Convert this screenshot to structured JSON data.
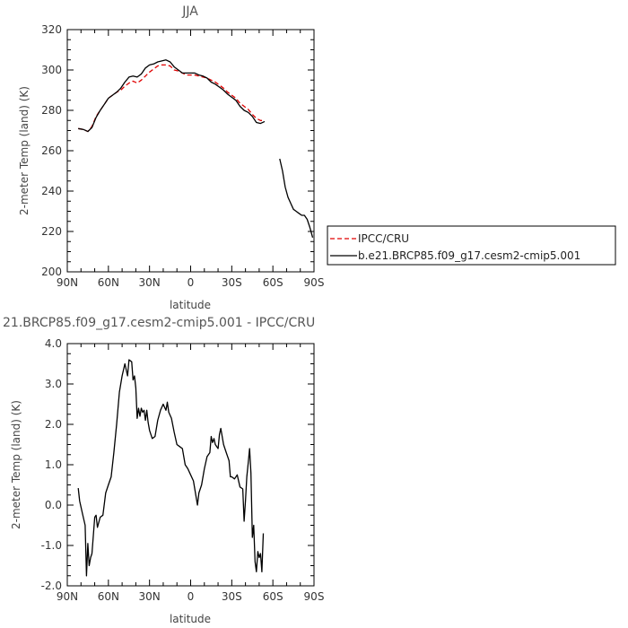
{
  "chart_data": [
    {
      "type": "line",
      "title": "JJA",
      "xlabel": "latitude",
      "ylabel": "2-meter Temp (land) (K)",
      "xlim": [
        90,
        -90
      ],
      "ylim": [
        200,
        320
      ],
      "x_ticks": [
        90,
        60,
        30,
        0,
        -30,
        -60,
        -90
      ],
      "x_tick_labels": [
        "90N",
        "60N",
        "30N",
        "0",
        "30S",
        "60S",
        "90S"
      ],
      "y_ticks": [
        200,
        220,
        240,
        260,
        280,
        300,
        320
      ],
      "y_tick_labels": [
        "200",
        "220",
        "240",
        "260",
        "280",
        "300",
        "320"
      ],
      "legend": "right",
      "series": [
        {
          "name": "IPCC/CRU",
          "color": "#e00000",
          "dash": "dashed",
          "points": [
            [
              82,
              271
            ],
            [
              78,
              270.5
            ],
            [
              75,
              269.5
            ],
            [
              72,
              272
            ],
            [
              69,
              277
            ],
            [
              66,
              280
            ],
            [
              63,
              283
            ],
            [
              60,
              286
            ],
            [
              57,
              287.5
            ],
            [
              54,
              289
            ],
            [
              51,
              290
            ],
            [
              48,
              292
            ],
            [
              45,
              293.5
            ],
            [
              42,
              294.5
            ],
            [
              39,
              293.5
            ],
            [
              36,
              295
            ],
            [
              33,
              297
            ],
            [
              30,
              299
            ],
            [
              27,
              300.5
            ],
            [
              24,
              302
            ],
            [
              21,
              302.5
            ],
            [
              18,
              302.5
            ],
            [
              15,
              302
            ],
            [
              12,
              300
            ],
            [
              9,
              299.5
            ],
            [
              6,
              298.5
            ],
            [
              3,
              297.5
            ],
            [
              0,
              297.5
            ],
            [
              -3,
              297.5
            ],
            [
              -6,
              297
            ],
            [
              -9,
              296.5
            ],
            [
              -12,
              296
            ],
            [
              -15,
              295
            ],
            [
              -18,
              294
            ],
            [
              -21,
              292.5
            ],
            [
              -24,
              291
            ],
            [
              -27,
              289
            ],
            [
              -30,
              287.5
            ],
            [
              -33,
              286
            ],
            [
              -36,
              283.5
            ],
            [
              -39,
              282
            ],
            [
              -42,
              280.5
            ],
            [
              -45,
              278
            ],
            [
              -48,
              276
            ],
            [
              -51,
              275
            ],
            [
              -54,
              275
            ]
          ]
        },
        {
          "name": "b.e21.BRCP85.f09_g17.cesm2-cmip5.001",
          "color": "#000000",
          "dash": "solid",
          "points": [
            [
              82,
              271
            ],
            [
              78,
              270.5
            ],
            [
              75,
              269.5
            ],
            [
              72,
              271.5
            ],
            [
              69,
              276.5
            ],
            [
              66,
              280
            ],
            [
              63,
              283
            ],
            [
              60,
              286
            ],
            [
              57,
              287.5
            ],
            [
              54,
              289
            ],
            [
              51,
              291
            ],
            [
              48,
              294
            ],
            [
              45,
              296.5
            ],
            [
              42,
              297
            ],
            [
              39,
              296.5
            ],
            [
              36,
              298
            ],
            [
              33,
              301
            ],
            [
              30,
              302.5
            ],
            [
              27,
              303
            ],
            [
              24,
              304
            ],
            [
              21,
              304.5
            ],
            [
              18,
              305
            ],
            [
              15,
              304
            ],
            [
              12,
              301.5
            ],
            [
              9,
              300
            ],
            [
              6,
              298.5
            ],
            [
              3,
              298.5
            ],
            [
              0,
              298.5
            ],
            [
              -3,
              298.5
            ],
            [
              -6,
              297.5
            ],
            [
              -9,
              297
            ],
            [
              -12,
              296
            ],
            [
              -15,
              294
            ],
            [
              -18,
              293
            ],
            [
              -21,
              291.5
            ],
            [
              -24,
              290
            ],
            [
              -27,
              288
            ],
            [
              -30,
              286.5
            ],
            [
              -33,
              285
            ],
            [
              -36,
              282
            ],
            [
              -39,
              280
            ],
            [
              -42,
              279
            ],
            [
              -45,
              277
            ],
            [
              -48,
              274
            ],
            [
              -51,
              273.5
            ],
            [
              -54,
              274.5
            ],
            null,
            [
              -65,
              256
            ],
            [
              -67,
              250
            ],
            [
              -69,
              242
            ],
            [
              -71,
              237
            ],
            [
              -73,
              234
            ],
            [
              -75,
              231
            ],
            [
              -77,
              230
            ],
            [
              -79,
              229
            ],
            [
              -81,
              228
            ],
            [
              -83,
              228
            ],
            [
              -85,
              226
            ],
            [
              -87,
              222
            ],
            [
              -89,
              217
            ]
          ]
        }
      ]
    },
    {
      "type": "line",
      "title": "21.BRCP85.f09_g17.cesm2-cmip5.001 - IPCC/CRU",
      "xlabel": "latitude",
      "ylabel": "2-meter Temp (land) (K)",
      "xlim": [
        90,
        -90
      ],
      "ylim": [
        -2,
        4
      ],
      "x_ticks": [
        90,
        60,
        30,
        0,
        -30,
        -60,
        -90
      ],
      "x_tick_labels": [
        "90N",
        "60N",
        "30N",
        "0",
        "30S",
        "60S",
        "90S"
      ],
      "y_ticks": [
        -2,
        -1,
        0,
        1,
        2,
        3,
        4
      ],
      "y_tick_labels": [
        "-2.0",
        "-1.0",
        "0.0",
        "1.0",
        "2.0",
        "3.0",
        "4.0"
      ],
      "series": [
        {
          "color": "#000000",
          "dash": "solid",
          "points": [
            [
              82,
              0.42
            ],
            [
              81,
              0.1
            ],
            [
              79,
              -0.2
            ],
            [
              77,
              -0.5
            ],
            [
              76,
              -1.75
            ],
            [
              75,
              -0.95
            ],
            [
              74,
              -1.5
            ],
            [
              73,
              -1.3
            ],
            [
              72,
              -1.2
            ],
            [
              70,
              -0.3
            ],
            [
              69,
              -0.25
            ],
            [
              68,
              -0.55
            ],
            [
              66,
              -0.3
            ],
            [
              64,
              -0.25
            ],
            [
              62,
              0.3
            ],
            [
              60,
              0.5
            ],
            [
              58,
              0.7
            ],
            [
              56,
              1.3
            ],
            [
              54,
              2.0
            ],
            [
              52,
              2.8
            ],
            [
              50,
              3.2
            ],
            [
              48,
              3.5
            ],
            [
              46,
              3.2
            ],
            [
              45,
              3.6
            ],
            [
              43,
              3.55
            ],
            [
              42,
              3.1
            ],
            [
              41,
              3.2
            ],
            [
              40,
              2.9
            ],
            [
              39,
              2.15
            ],
            [
              38,
              2.4
            ],
            [
              37,
              2.2
            ],
            [
              36,
              2.4
            ],
            [
              35,
              2.3
            ],
            [
              34,
              2.35
            ],
            [
              33,
              2.1
            ],
            [
              32,
              2.35
            ],
            [
              31,
              2.05
            ],
            [
              30,
              1.85
            ],
            [
              28,
              1.65
            ],
            [
              26,
              1.7
            ],
            [
              24,
              2.1
            ],
            [
              22,
              2.35
            ],
            [
              20,
              2.5
            ],
            [
              18,
              2.35
            ],
            [
              17,
              2.55
            ],
            [
              16,
              2.3
            ],
            [
              14,
              2.15
            ],
            [
              12,
              1.8
            ],
            [
              10,
              1.5
            ],
            [
              8,
              1.45
            ],
            [
              6,
              1.4
            ],
            [
              4,
              1.0
            ],
            [
              2,
              0.9
            ],
            [
              0,
              0.75
            ],
            [
              -2,
              0.6
            ],
            [
              -4,
              0.2
            ],
            [
              -5,
              0.0
            ],
            [
              -6,
              0.3
            ],
            [
              -8,
              0.5
            ],
            [
              -10,
              0.9
            ],
            [
              -12,
              1.2
            ],
            [
              -14,
              1.3
            ],
            [
              -15,
              1.7
            ],
            [
              -16,
              1.55
            ],
            [
              -17,
              1.65
            ],
            [
              -18,
              1.5
            ],
            [
              -20,
              1.4
            ],
            [
              -21,
              1.75
            ],
            [
              -22,
              1.9
            ],
            [
              -24,
              1.5
            ],
            [
              -26,
              1.3
            ],
            [
              -28,
              1.1
            ],
            [
              -29,
              0.7
            ],
            [
              -30,
              0.7
            ],
            [
              -32,
              0.65
            ],
            [
              -34,
              0.75
            ],
            [
              -36,
              0.45
            ],
            [
              -38,
              0.4
            ],
            [
              -39,
              -0.4
            ],
            [
              -40,
              0.1
            ],
            [
              -41,
              0.7
            ],
            [
              -42,
              1.05
            ],
            [
              -43,
              1.4
            ],
            [
              -44,
              0.8
            ],
            [
              -45,
              -0.8
            ],
            [
              -46,
              -0.5
            ],
            [
              -47,
              -1.4
            ],
            [
              -48,
              -1.65
            ],
            [
              -49,
              -1.15
            ],
            [
              -50,
              -1.3
            ],
            [
              -51,
              -1.2
            ],
            [
              -52,
              -1.65
            ],
            [
              -53,
              -0.7
            ]
          ]
        }
      ]
    }
  ]
}
